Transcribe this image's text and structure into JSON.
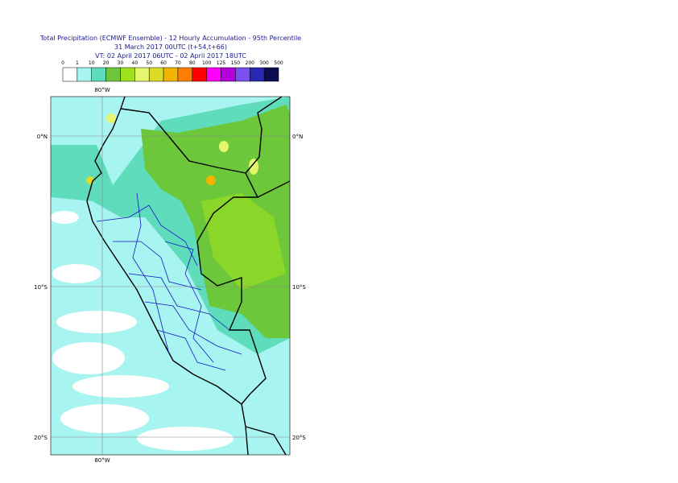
{
  "header": {
    "title": "Total Precipitation (ECMWF Ensemble) - 12 Hourly Accumulation - 95th Percentile",
    "subtitle": "31 March 2017 00UTC (t+54,t+66)",
    "valid_time": "VT: 02 April 2017 06UTC - 02 April 2017 18UTC"
  },
  "legend": {
    "labels": [
      0,
      1,
      10,
      20,
      30,
      40,
      50,
      60,
      70,
      80,
      100,
      125,
      150,
      200,
      300,
      500
    ],
    "colors": [
      "#ffffff",
      "#a8f4f0",
      "#5fdcbc",
      "#6cc83a",
      "#9ee01e",
      "#e6f56e",
      "#dcdc28",
      "#f2b400",
      "#ff7d00",
      "#ff0000",
      "#ff00ff",
      "#b400dc",
      "#7a50f0",
      "#2828b4",
      "#0c0c50"
    ]
  },
  "map": {
    "meridians": [
      {
        "label": "80°W"
      }
    ],
    "parallels": [
      {
        "label": "0°N"
      },
      {
        "label": "10°S"
      },
      {
        "label": "20°S"
      }
    ]
  }
}
